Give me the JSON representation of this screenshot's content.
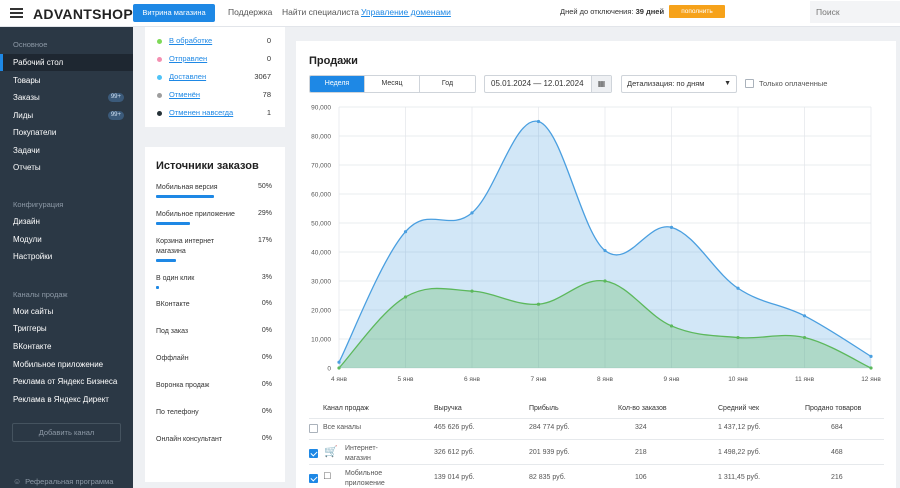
{
  "header": {
    "logo": "ADVANTSHOP",
    "shop_button": "Витрина магазина",
    "links": [
      "Поддержка",
      "Найти специалиста",
      "Управление доменами"
    ],
    "days_label": "Дней до отключения:",
    "days_value": "39 дней",
    "pay_button": "пополнить",
    "search_placeholder": "Поиск"
  },
  "sidebar": {
    "sections": [
      {
        "title": "Основное",
        "items": [
          {
            "label": "Рабочий стол",
            "active": true
          },
          {
            "label": "Товары"
          },
          {
            "label": "Заказы",
            "badge": "99+"
          },
          {
            "label": "Лиды",
            "badge": "99+"
          },
          {
            "label": "Покупатели"
          },
          {
            "label": "Задачи"
          },
          {
            "label": "Отчеты"
          }
        ]
      },
      {
        "title": "Конфигурация",
        "items": [
          {
            "label": "Дизайн"
          },
          {
            "label": "Модули"
          },
          {
            "label": "Настройки"
          }
        ]
      },
      {
        "title": "Каналы продаж",
        "items": [
          {
            "label": "Мои сайты"
          },
          {
            "label": "Триггеры"
          },
          {
            "label": "ВКонтакте"
          },
          {
            "label": "Мобильное приложение"
          },
          {
            "label": "Реклама от Яндекс Бизнеса"
          },
          {
            "label": "Реклама в Яндекс Директ"
          }
        ]
      }
    ],
    "add_channel": "Добавить канал",
    "referral": "Реферальная программа"
  },
  "statuses": [
    {
      "label": "В обработке",
      "count": "0",
      "color": "#7ed957"
    },
    {
      "label": "Отправлен",
      "count": "0",
      "color": "#f48fb1"
    },
    {
      "label": "Доставлен",
      "count": "3067",
      "color": "#4fc3f7"
    },
    {
      "label": "Отменён",
      "count": "78",
      "color": "#9e9e9e"
    },
    {
      "label": "Отменен навсегда",
      "count": "1",
      "color": "#263238"
    }
  ],
  "sources": {
    "title": "Источники заказов",
    "items": [
      {
        "label": "Мобильная версия",
        "pct": "50%",
        "value": 50
      },
      {
        "label": "Мобильное приложение",
        "pct": "29%",
        "value": 29
      },
      {
        "label": "Корзина интернет магазина",
        "pct": "17%",
        "value": 17
      },
      {
        "label": "В один клик",
        "pct": "3%",
        "value": 3
      },
      {
        "label": "ВКонтакте",
        "pct": "0%",
        "value": 0
      },
      {
        "label": "Под заказ",
        "pct": "0%",
        "value": 0
      },
      {
        "label": "Оффлайн",
        "pct": "0%",
        "value": 0
      },
      {
        "label": "Воронка продаж",
        "pct": "0%",
        "value": 0
      },
      {
        "label": "По телефону",
        "pct": "0%",
        "value": 0
      },
      {
        "label": "Онлайн консультант",
        "pct": "0%",
        "value": 0
      }
    ]
  },
  "sales": {
    "title": "Продажи",
    "periods": [
      "Неделя",
      "Месяц",
      "Год"
    ],
    "active_period": 0,
    "date_range": "05.01.2024 — 12.01.2024",
    "detail": "Детализация: по дням",
    "paid_only": "Только оплаченные",
    "table": {
      "headers": [
        "Канал продаж",
        "Выручка",
        "Прибыль",
        "Кол-во заказов",
        "Средний чек",
        "Продано товаров"
      ],
      "rows": [
        {
          "name": "Все каналы",
          "checked": false,
          "icon": "",
          "cells": [
            "465 626 руб.",
            "284 774 руб.",
            "324",
            "1 437,12 руб.",
            "684"
          ]
        },
        {
          "name": "Интернет-\nмагазин",
          "checked": true,
          "icon": "cart-icon",
          "cells": [
            "326 612 руб.",
            "201 939 руб.",
            "218",
            "1 498,22 руб.",
            "468"
          ]
        },
        {
          "name": "Мобильное\nприложение",
          "checked": true,
          "icon": "phone-icon",
          "cells": [
            "139 014 руб.",
            "82 835 руб.",
            "106",
            "1 311,45 руб.",
            "216"
          ]
        }
      ]
    }
  },
  "chart_data": {
    "type": "area",
    "categories": [
      "4 янв",
      "5 янв",
      "6 янв",
      "7 янв",
      "8 янв",
      "9 янв",
      "10 янв",
      "11 янв",
      "12 янв"
    ],
    "series": [
      {
        "values": [
          2000,
          47000,
          53500,
          85000,
          40500,
          48500,
          27500,
          18000,
          4000
        ],
        "color": "#4a9fe0"
      },
      {
        "values": [
          0,
          24500,
          26500,
          22000,
          30000,
          14500,
          10500,
          10500,
          0
        ],
        "color": "#5cb85c"
      }
    ],
    "ylim": [
      0,
      90000
    ],
    "yticks": [
      "0",
      "10,000",
      "20,000",
      "30,000",
      "40,000",
      "50,000",
      "60,000",
      "70,000",
      "80,000",
      "90,000"
    ],
    "grid": true
  }
}
